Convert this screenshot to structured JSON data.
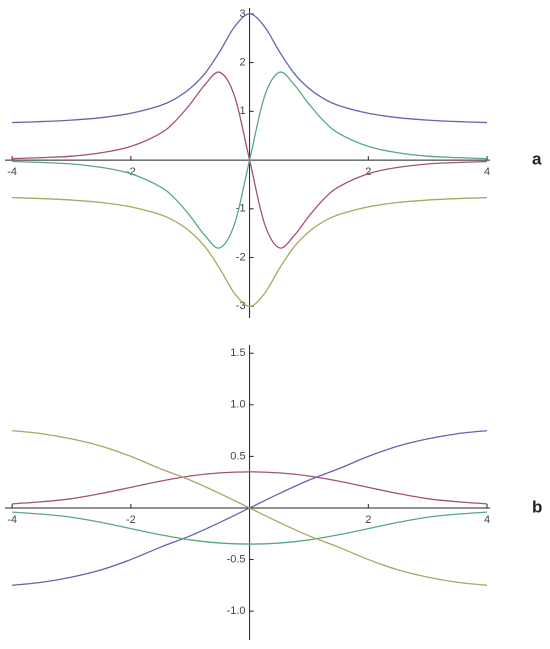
{
  "chart_data": [
    {
      "type": "line",
      "annotation": "a",
      "x": [
        -4,
        -3.5,
        -3,
        -2.5,
        -2,
        -1.5,
        -1.25,
        -1,
        -0.75,
        -0.5,
        -0.25,
        0,
        0.25,
        0.5,
        0.75,
        1,
        1.25,
        1.5,
        2,
        2.5,
        3,
        3.5,
        4
      ],
      "series": [
        {
          "color": "#6464b0",
          "values": [
            0.77,
            0.79,
            0.82,
            0.87,
            0.96,
            1.12,
            1.26,
            1.47,
            1.78,
            2.23,
            2.74,
            3.0,
            2.74,
            2.23,
            1.78,
            1.47,
            1.26,
            1.12,
            0.96,
            0.87,
            0.82,
            0.79,
            0.77
          ]
        },
        {
          "color": "#a4507c",
          "values": [
            0.03,
            0.05,
            0.08,
            0.15,
            0.28,
            0.55,
            0.8,
            1.15,
            1.55,
            1.8,
            1.3,
            0,
            -1.3,
            -1.8,
            -1.55,
            -1.15,
            -0.8,
            -0.55,
            -0.28,
            -0.15,
            -0.08,
            -0.05,
            -0.03
          ]
        },
        {
          "color": "#58a880",
          "values": [
            -0.03,
            -0.05,
            -0.08,
            -0.15,
            -0.28,
            -0.55,
            -0.8,
            -1.15,
            -1.55,
            -1.8,
            -1.3,
            0,
            1.3,
            1.8,
            1.55,
            1.15,
            0.8,
            0.55,
            0.28,
            0.15,
            0.08,
            0.05,
            0.03
          ]
        },
        {
          "color": "#a8a860",
          "values": [
            -0.77,
            -0.79,
            -0.82,
            -0.87,
            -0.96,
            -1.12,
            -1.26,
            -1.47,
            -1.78,
            -2.23,
            -2.74,
            -3.0,
            -2.74,
            -2.23,
            -1.78,
            -1.47,
            -1.26,
            -1.12,
            -0.96,
            -0.87,
            -0.82,
            -0.79,
            -0.77
          ]
        }
      ],
      "xlim": [
        -4.12,
        4.05
      ],
      "ylim": [
        -3.24,
        3.12
      ],
      "xticks": [
        -4,
        -2,
        2,
        4
      ],
      "yticks": [
        -3,
        -2,
        -1,
        1,
        2,
        3
      ]
    },
    {
      "type": "line",
      "annotation": "b",
      "x": [
        -4,
        -3.5,
        -3,
        -2.5,
        -2,
        -1.5,
        -1,
        -0.5,
        0,
        0.5,
        1,
        1.5,
        2,
        2.5,
        3,
        3.5,
        4
      ],
      "series": [
        {
          "color": "#6464b0",
          "values": [
            -0.75,
            -0.72,
            -0.67,
            -0.6,
            -0.5,
            -0.38,
            -0.27,
            -0.14,
            0,
            0.14,
            0.27,
            0.38,
            0.5,
            0.6,
            0.67,
            0.72,
            0.75
          ]
        },
        {
          "color": "#a4507c",
          "values": [
            0.04,
            0.06,
            0.09,
            0.14,
            0.2,
            0.26,
            0.31,
            0.34,
            0.35,
            0.34,
            0.31,
            0.26,
            0.2,
            0.14,
            0.09,
            0.06,
            0.04
          ]
        },
        {
          "color": "#58a880",
          "values": [
            -0.04,
            -0.06,
            -0.09,
            -0.14,
            -0.2,
            -0.26,
            -0.31,
            -0.34,
            -0.35,
            -0.34,
            -0.31,
            -0.26,
            -0.2,
            -0.14,
            -0.09,
            -0.06,
            -0.04
          ]
        },
        {
          "color": "#a8a860",
          "values": [
            0.75,
            0.72,
            0.67,
            0.6,
            0.5,
            0.38,
            0.27,
            0.14,
            0,
            -0.14,
            -0.27,
            -0.38,
            -0.5,
            -0.6,
            -0.67,
            -0.72,
            -0.75
          ]
        }
      ],
      "xlim": [
        -4.12,
        4.05
      ],
      "ylim": [
        -1.28,
        1.58
      ],
      "xticks": [
        -4,
        -2,
        2,
        4
      ],
      "yticks": [
        {
          "value": -1,
          "label": "-1.0"
        },
        -0.5,
        0.5,
        {
          "value": 1,
          "label": "1.0"
        },
        1.5
      ]
    }
  ]
}
